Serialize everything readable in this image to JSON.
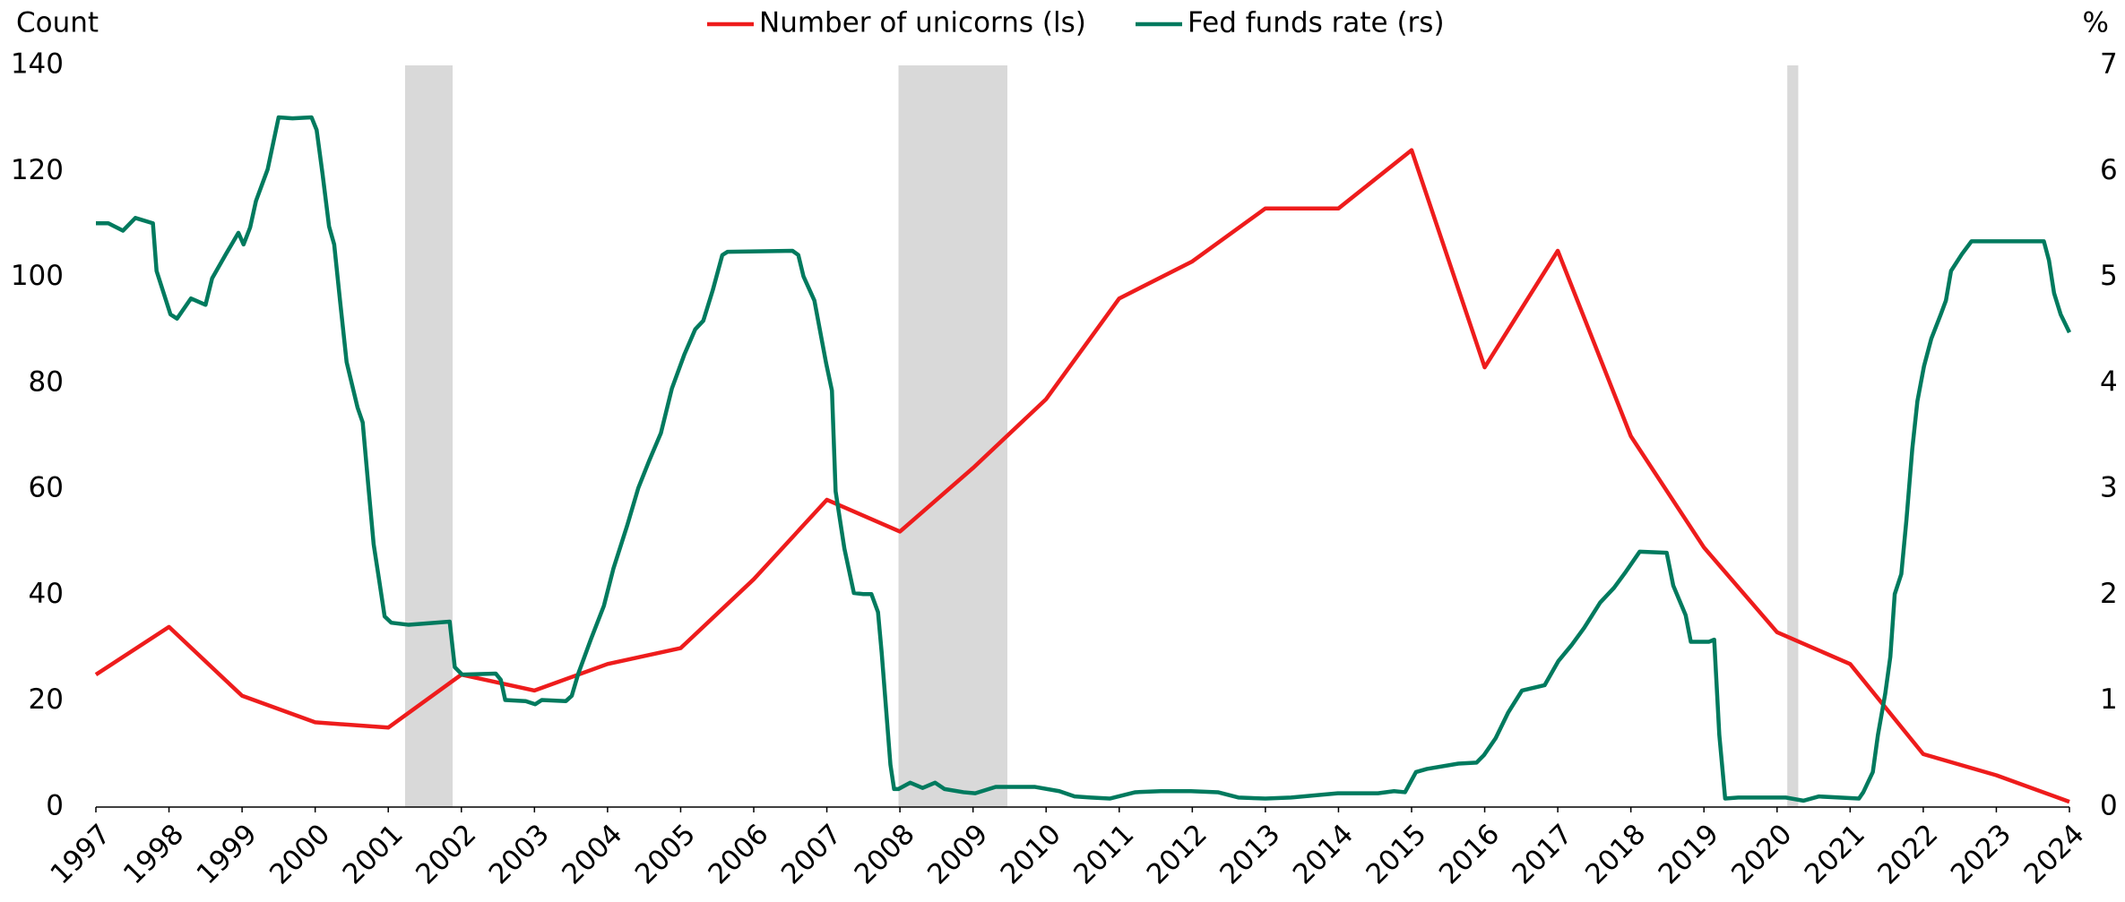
{
  "chart_data": {
    "type": "line",
    "y_label": "Count",
    "y2_label": "%",
    "xlim": [
      1997,
      2024
    ],
    "xticks": [
      1997,
      1998,
      1999,
      2000,
      2001,
      2002,
      2003,
      2004,
      2005,
      2006,
      2007,
      2008,
      2009,
      2010,
      2011,
      2012,
      2013,
      2014,
      2015,
      2016,
      2017,
      2018,
      2019,
      2020,
      2021,
      2022,
      2023,
      2024
    ],
    "ylim": [
      0,
      140
    ],
    "yticks": [
      0,
      20,
      40,
      60,
      80,
      100,
      120,
      140
    ],
    "y2lim": [
      0,
      7
    ],
    "y2ticks": [
      0,
      1,
      2,
      3,
      4,
      5,
      6,
      7
    ],
    "shaded_periods": [
      [
        2001.23,
        2001.88
      ],
      [
        2007.98,
        2009.47
      ],
      [
        2020.14,
        2020.29
      ]
    ],
    "shade_color": "#d9d9d9",
    "legend": "top",
    "series": [
      {
        "name": "Number of unicorns (ls)",
        "color": "#ee1c1c",
        "axis": "y",
        "x": [
          1997,
          1998,
          1999,
          2000,
          2001,
          2002,
          2003,
          2004,
          2005,
          2006,
          2007,
          2008,
          2009,
          2010,
          2011,
          2012,
          2013,
          2014,
          2015,
          2016,
          2017,
          2018,
          2019,
          2020,
          2021,
          2022,
          2023,
          2024
        ],
        "values": [
          25,
          34,
          21,
          16,
          15,
          25,
          22,
          27,
          30,
          43,
          58,
          52,
          64,
          77,
          96,
          103,
          113,
          113,
          124,
          83,
          105,
          70,
          49,
          33,
          27,
          10,
          6,
          1
        ]
      },
      {
        "name": "Fed funds rate (rs)",
        "color": "#007a5e",
        "axis": "y2",
        "x": [
          1997.0,
          1997.17,
          1997.37,
          1997.54,
          1997.78,
          1997.83,
          1998.02,
          1998.11,
          1998.3,
          1998.5,
          1998.59,
          1998.78,
          1998.95,
          1999.02,
          1999.11,
          1999.19,
          1999.35,
          1999.5,
          1999.69,
          1999.95,
          2000.02,
          2000.1,
          2000.19,
          2000.26,
          2000.34,
          2000.43,
          2000.58,
          2000.65,
          2000.73,
          2000.8,
          2000.88,
          2000.95,
          2001.04,
          2001.28,
          2001.84,
          2001.91,
          2002.01,
          2002.47,
          2002.54,
          2002.6,
          2002.88,
          2003.01,
          2003.1,
          2003.43,
          2003.51,
          2003.6,
          2003.77,
          2003.95,
          2004.08,
          2004.27,
          2004.42,
          2004.57,
          2004.73,
          2004.88,
          2005.05,
          2005.2,
          2005.31,
          2005.44,
          2005.57,
          2005.64,
          2006.53,
          2006.61,
          2006.68,
          2006.83,
          2006.99,
          2007.07,
          2007.12,
          2007.24,
          2007.37,
          2007.5,
          2007.61,
          2007.7,
          2007.75,
          2007.81,
          2007.87,
          2007.92,
          2007.98,
          2008.14,
          2008.31,
          2008.48,
          2008.61,
          2008.87,
          2009.03,
          2009.31,
          2009.85,
          2010.18,
          2010.39,
          2010.61,
          2010.87,
          2011.22,
          2011.57,
          2011.98,
          2012.35,
          2012.63,
          2013.0,
          2013.35,
          2013.99,
          2014.54,
          2014.76,
          2014.91,
          2015.06,
          2015.21,
          2015.64,
          2015.89,
          2015.99,
          2016.15,
          2016.32,
          2016.51,
          2016.82,
          2017.01,
          2017.19,
          2017.36,
          2017.58,
          2017.77,
          2017.93,
          2018.12,
          2018.49,
          2018.58,
          2018.75,
          2018.82,
          2019.07,
          2019.14,
          2019.21,
          2019.29,
          2019.47,
          2020.12,
          2020.36,
          2020.57,
          2021.12,
          2021.18,
          2021.31,
          2021.38,
          2021.48,
          2021.55,
          2021.61,
          2021.7,
          2021.77,
          2021.85,
          2021.92,
          2022.01,
          2022.11,
          2022.24,
          2022.31,
          2022.38,
          2022.53,
          2022.66,
          2023.65,
          2023.72,
          2023.79,
          2023.88,
          2024.0
        ],
        "values": [
          5.51,
          5.51,
          5.44,
          5.56,
          5.51,
          5.06,
          4.65,
          4.61,
          4.8,
          4.74,
          4.99,
          5.22,
          5.42,
          5.31,
          5.47,
          5.72,
          6.02,
          6.51,
          6.5,
          6.51,
          6.39,
          5.98,
          5.48,
          5.31,
          4.78,
          4.2,
          3.77,
          3.63,
          3.01,
          2.48,
          2.12,
          1.8,
          1.74,
          1.72,
          1.75,
          1.32,
          1.25,
          1.26,
          1.2,
          1.01,
          1.0,
          0.97,
          1.01,
          1.0,
          1.05,
          1.26,
          1.58,
          1.9,
          2.25,
          2.66,
          3.01,
          3.27,
          3.53,
          3.95,
          4.27,
          4.51,
          4.59,
          4.88,
          5.21,
          5.24,
          5.25,
          5.21,
          5.01,
          4.78,
          4.19,
          3.93,
          2.98,
          2.44,
          2.02,
          2.01,
          2.01,
          1.84,
          1.46,
          0.93,
          0.4,
          0.17,
          0.17,
          0.23,
          0.18,
          0.23,
          0.17,
          0.14,
          0.13,
          0.19,
          0.19,
          0.15,
          0.1,
          0.09,
          0.08,
          0.14,
          0.15,
          0.15,
          0.14,
          0.09,
          0.08,
          0.09,
          0.13,
          0.13,
          0.15,
          0.14,
          0.33,
          0.36,
          0.41,
          0.42,
          0.49,
          0.65,
          0.89,
          1.1,
          1.15,
          1.38,
          1.53,
          1.69,
          1.93,
          2.07,
          2.22,
          2.41,
          2.4,
          2.09,
          1.81,
          1.56,
          1.56,
          1.58,
          0.68,
          0.08,
          0.09,
          0.09,
          0.06,
          0.1,
          0.08,
          0.14,
          0.33,
          0.68,
          1.07,
          1.42,
          2.01,
          2.2,
          2.71,
          3.38,
          3.83,
          4.16,
          4.42,
          4.65,
          4.78,
          5.06,
          5.22,
          5.34,
          5.34,
          5.16,
          4.85,
          4.65,
          4.48
        ]
      }
    ]
  }
}
